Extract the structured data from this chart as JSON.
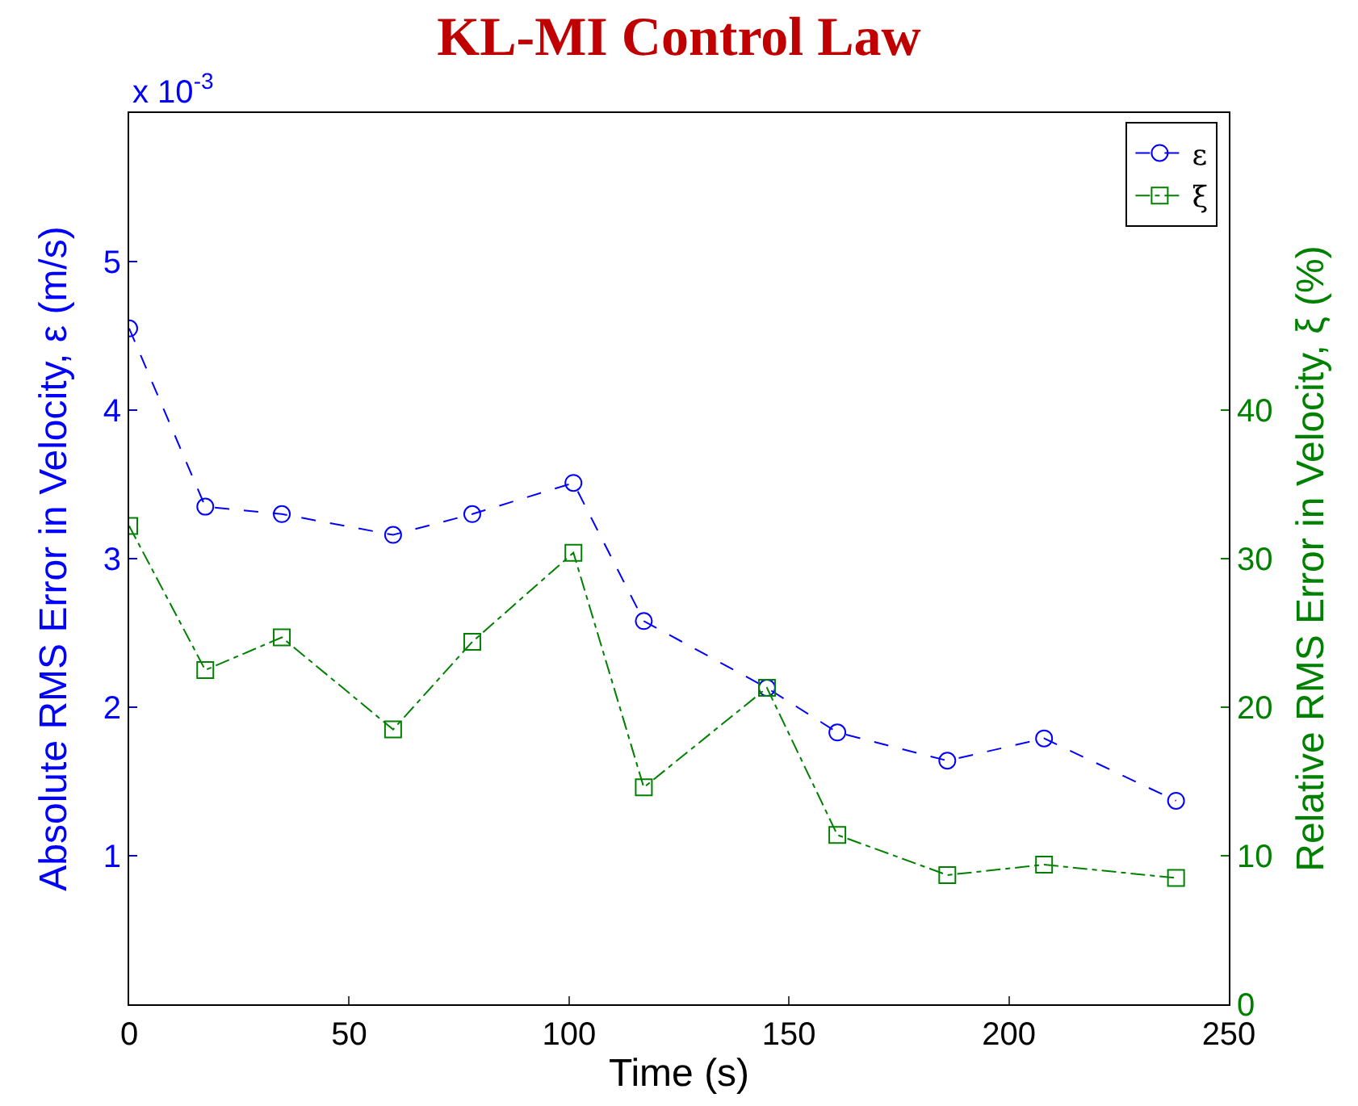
{
  "chart_data": {
    "type": "line",
    "title": "KL-MI Control Law",
    "xlabel": "Time (s)",
    "ylabel": "Absolute RMS Error in Velocity, ε (m/s)",
    "y2label": "Relative RMS Error in Velocity, ξ (%)",
    "annotations": [
      "x 10$^{-3}$"
    ],
    "x": [
      0,
      17.3,
      34.7,
      60,
      78,
      101,
      117,
      145,
      161,
      186,
      208,
      238
    ],
    "series": [
      {
        "name": "ε",
        "color": "#0000ff",
        "marker": "circle",
        "line_style": "dashed",
        "values": [
          4.55,
          3.35,
          3.3,
          3.16,
          3.3,
          3.51,
          2.58,
          2.13,
          1.83,
          1.64,
          1.79,
          1.37
        ]
      },
      {
        "name": "ξ",
        "color": "#008000",
        "marker": "square",
        "line_style": "dashdot",
        "axis": "y2",
        "values": [
          32.2,
          22.5,
          24.7,
          18.5,
          24.4,
          30.4,
          14.6,
          21.3,
          11.4,
          8.7,
          9.4,
          8.5
        ]
      }
    ],
    "xlim": [
      0,
      250
    ],
    "xticks": [
      0,
      50,
      100,
      150,
      200,
      250
    ],
    "ylim": [
      0,
      6
    ],
    "yticks": [
      1,
      2,
      3,
      4,
      5
    ],
    "y2lim": [
      0,
      60
    ],
    "y2ticks": [
      0,
      10,
      20,
      30,
      40
    ],
    "legend": "top right"
  }
}
